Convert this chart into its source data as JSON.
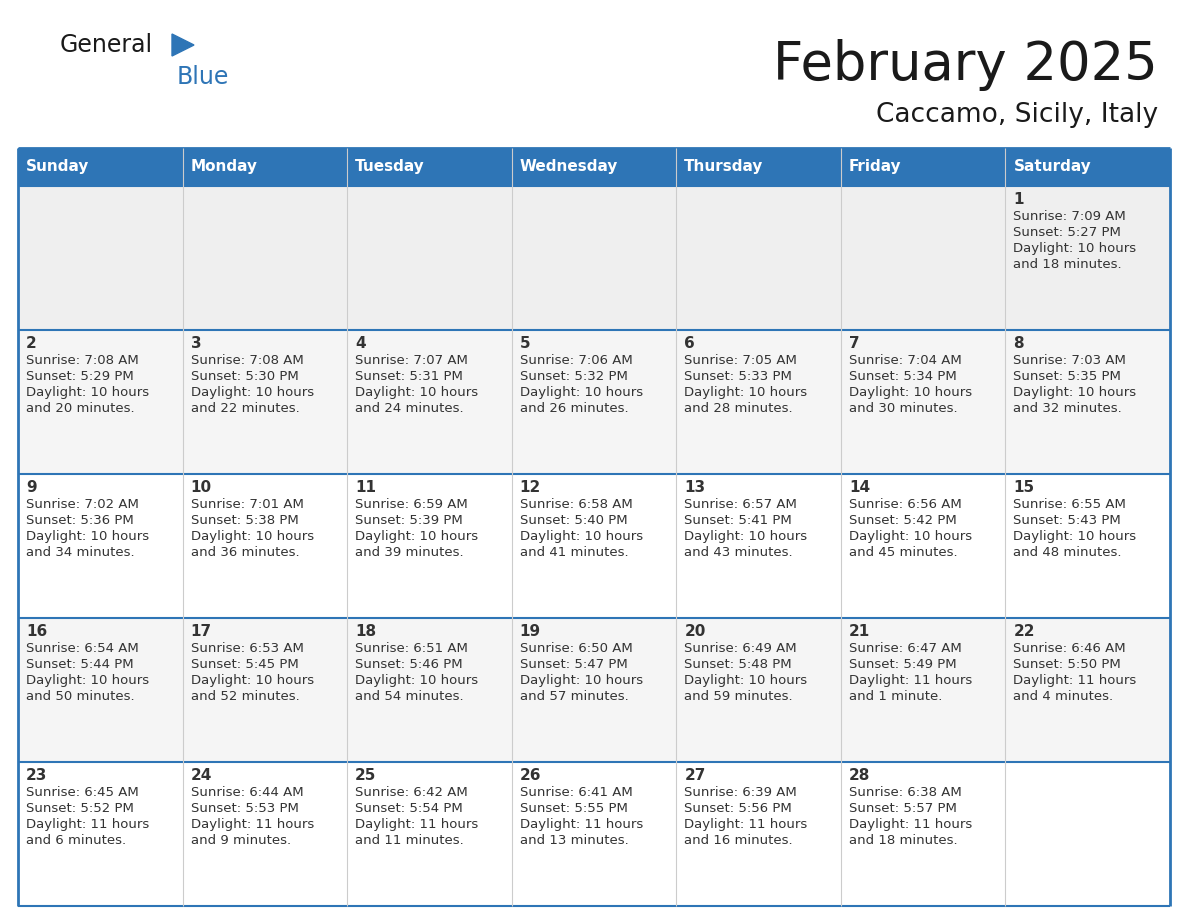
{
  "title": "February 2025",
  "subtitle": "Caccamo, Sicily, Italy",
  "header_color": "#2E75B6",
  "header_text_color": "#FFFFFF",
  "cell_bg_row0": "#EFEFEF",
  "cell_bg_row1": "#F5F5F5",
  "cell_bg_row2": "#FFFFFF",
  "cell_bg_row3": "#F5F5F5",
  "cell_bg_row4": "#FFFFFF",
  "border_color": "#2E75B6",
  "grid_line_color": "#CCCCCC",
  "text_color": "#333333",
  "day_names": [
    "Sunday",
    "Monday",
    "Tuesday",
    "Wednesday",
    "Thursday",
    "Friday",
    "Saturday"
  ],
  "logo_text1": "General",
  "logo_text2": "Blue",
  "logo_color1": "#1a1a1a",
  "logo_color2": "#2E75B6",
  "title_color": "#1a1a1a",
  "subtitle_color": "#1a1a1a",
  "days": [
    {
      "day": 1,
      "col": 6,
      "row": 0,
      "sunrise": "7:09 AM",
      "sunset": "5:27 PM",
      "daylight": "10 hours and 18 minutes."
    },
    {
      "day": 2,
      "col": 0,
      "row": 1,
      "sunrise": "7:08 AM",
      "sunset": "5:29 PM",
      "daylight": "10 hours and 20 minutes."
    },
    {
      "day": 3,
      "col": 1,
      "row": 1,
      "sunrise": "7:08 AM",
      "sunset": "5:30 PM",
      "daylight": "10 hours and 22 minutes."
    },
    {
      "day": 4,
      "col": 2,
      "row": 1,
      "sunrise": "7:07 AM",
      "sunset": "5:31 PM",
      "daylight": "10 hours and 24 minutes."
    },
    {
      "day": 5,
      "col": 3,
      "row": 1,
      "sunrise": "7:06 AM",
      "sunset": "5:32 PM",
      "daylight": "10 hours and 26 minutes."
    },
    {
      "day": 6,
      "col": 4,
      "row": 1,
      "sunrise": "7:05 AM",
      "sunset": "5:33 PM",
      "daylight": "10 hours and 28 minutes."
    },
    {
      "day": 7,
      "col": 5,
      "row": 1,
      "sunrise": "7:04 AM",
      "sunset": "5:34 PM",
      "daylight": "10 hours and 30 minutes."
    },
    {
      "day": 8,
      "col": 6,
      "row": 1,
      "sunrise": "7:03 AM",
      "sunset": "5:35 PM",
      "daylight": "10 hours and 32 minutes."
    },
    {
      "day": 9,
      "col": 0,
      "row": 2,
      "sunrise": "7:02 AM",
      "sunset": "5:36 PM",
      "daylight": "10 hours and 34 minutes."
    },
    {
      "day": 10,
      "col": 1,
      "row": 2,
      "sunrise": "7:01 AM",
      "sunset": "5:38 PM",
      "daylight": "10 hours and 36 minutes."
    },
    {
      "day": 11,
      "col": 2,
      "row": 2,
      "sunrise": "6:59 AM",
      "sunset": "5:39 PM",
      "daylight": "10 hours and 39 minutes."
    },
    {
      "day": 12,
      "col": 3,
      "row": 2,
      "sunrise": "6:58 AM",
      "sunset": "5:40 PM",
      "daylight": "10 hours and 41 minutes."
    },
    {
      "day": 13,
      "col": 4,
      "row": 2,
      "sunrise": "6:57 AM",
      "sunset": "5:41 PM",
      "daylight": "10 hours and 43 minutes."
    },
    {
      "day": 14,
      "col": 5,
      "row": 2,
      "sunrise": "6:56 AM",
      "sunset": "5:42 PM",
      "daylight": "10 hours and 45 minutes."
    },
    {
      "day": 15,
      "col": 6,
      "row": 2,
      "sunrise": "6:55 AM",
      "sunset": "5:43 PM",
      "daylight": "10 hours and 48 minutes."
    },
    {
      "day": 16,
      "col": 0,
      "row": 3,
      "sunrise": "6:54 AM",
      "sunset": "5:44 PM",
      "daylight": "10 hours and 50 minutes."
    },
    {
      "day": 17,
      "col": 1,
      "row": 3,
      "sunrise": "6:53 AM",
      "sunset": "5:45 PM",
      "daylight": "10 hours and 52 minutes."
    },
    {
      "day": 18,
      "col": 2,
      "row": 3,
      "sunrise": "6:51 AM",
      "sunset": "5:46 PM",
      "daylight": "10 hours and 54 minutes."
    },
    {
      "day": 19,
      "col": 3,
      "row": 3,
      "sunrise": "6:50 AM",
      "sunset": "5:47 PM",
      "daylight": "10 hours and 57 minutes."
    },
    {
      "day": 20,
      "col": 4,
      "row": 3,
      "sunrise": "6:49 AM",
      "sunset": "5:48 PM",
      "daylight": "10 hours and 59 minutes."
    },
    {
      "day": 21,
      "col": 5,
      "row": 3,
      "sunrise": "6:47 AM",
      "sunset": "5:49 PM",
      "daylight": "11 hours and 1 minute."
    },
    {
      "day": 22,
      "col": 6,
      "row": 3,
      "sunrise": "6:46 AM",
      "sunset": "5:50 PM",
      "daylight": "11 hours and 4 minutes."
    },
    {
      "day": 23,
      "col": 0,
      "row": 4,
      "sunrise": "6:45 AM",
      "sunset": "5:52 PM",
      "daylight": "11 hours and 6 minutes."
    },
    {
      "day": 24,
      "col": 1,
      "row": 4,
      "sunrise": "6:44 AM",
      "sunset": "5:53 PM",
      "daylight": "11 hours and 9 minutes."
    },
    {
      "day": 25,
      "col": 2,
      "row": 4,
      "sunrise": "6:42 AM",
      "sunset": "5:54 PM",
      "daylight": "11 hours and 11 minutes."
    },
    {
      "day": 26,
      "col": 3,
      "row": 4,
      "sunrise": "6:41 AM",
      "sunset": "5:55 PM",
      "daylight": "11 hours and 13 minutes."
    },
    {
      "day": 27,
      "col": 4,
      "row": 4,
      "sunrise": "6:39 AM",
      "sunset": "5:56 PM",
      "daylight": "11 hours and 16 minutes."
    },
    {
      "day": 28,
      "col": 5,
      "row": 4,
      "sunrise": "6:38 AM",
      "sunset": "5:57 PM",
      "daylight": "11 hours and 18 minutes."
    }
  ],
  "num_rows": 5,
  "num_cols": 7,
  "row_bg_colors": [
    "#EFEFEF",
    "#F5F5F5",
    "#FFFFFF",
    "#F5F5F5",
    "#FFFFFF"
  ]
}
